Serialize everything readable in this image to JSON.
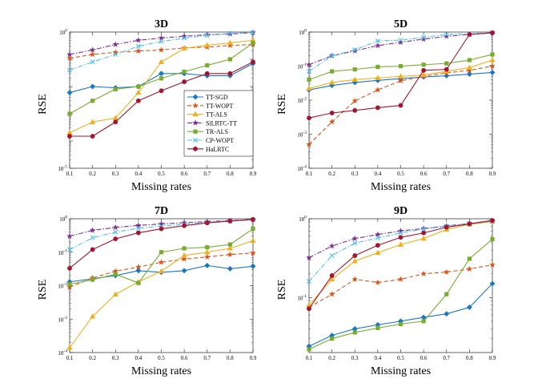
{
  "chart_data": [
    {
      "type": "line",
      "title": "3D",
      "xlabel": "Missing rates",
      "ylabel": "RSE",
      "yscale": "log",
      "ylim": [
        1e-05,
        1
      ],
      "yticks": [
        {
          "v": 1e-05,
          "base": "10",
          "exp": "-5"
        },
        {
          "v": 1,
          "base": "10",
          "exp": "0"
        }
      ],
      "x": [
        0.1,
        0.2,
        0.3,
        0.4,
        0.5,
        0.6,
        0.7,
        0.8,
        0.9
      ],
      "xtick_labels": [
        "0.1",
        "0.2",
        "0.3",
        "0.4",
        "0.5",
        "0.6",
        "0.7",
        "0.8",
        "0.9"
      ],
      "legend_position": "lower-right",
      "series": [
        {
          "name": "TT-SGD",
          "color": "#1a78c2",
          "marker": "diamond",
          "dash": "solid",
          "values": [
            0.006,
            0.01,
            0.009,
            0.01,
            0.03,
            0.03,
            0.025,
            0.025,
            0.07
          ]
        },
        {
          "name": "TT-WOPT",
          "color": "#d9541a",
          "marker": "star",
          "dash": "dashed",
          "values": [
            0.11,
            0.15,
            0.18,
            0.2,
            0.22,
            0.26,
            0.28,
            0.32,
            0.35
          ]
        },
        {
          "name": "TT-ALS",
          "color": "#edb120",
          "marker": "triangle",
          "dash": "solid",
          "values": [
            0.0002,
            0.0005,
            0.0007,
            0.006,
            0.08,
            0.25,
            0.33,
            0.4,
            0.5
          ]
        },
        {
          "name": "SiLRTC-TT",
          "color": "#7e2f8e",
          "marker": "star",
          "dash": "dashdot",
          "values": [
            0.15,
            0.22,
            0.35,
            0.5,
            0.6,
            0.7,
            0.8,
            0.85,
            0.95
          ]
        },
        {
          "name": "TR-ALS",
          "color": "#77ac30",
          "marker": "square",
          "dash": "solid",
          "values": [
            0.001,
            0.003,
            0.008,
            0.01,
            0.02,
            0.035,
            0.06,
            0.1,
            0.4
          ]
        },
        {
          "name": "CP-WOPT",
          "color": "#4dbeee",
          "marker": "x",
          "dash": "dashdot",
          "values": [
            0.04,
            0.08,
            0.15,
            0.3,
            0.45,
            0.6,
            0.75,
            0.9,
            0.95
          ]
        },
        {
          "name": "HaLRTC",
          "color": "#a2142f",
          "marker": "circle",
          "dash": "solid",
          "values": [
            0.00015,
            0.00015,
            0.0005,
            0.003,
            0.007,
            0.015,
            0.03,
            0.03,
            0.08
          ]
        }
      ]
    },
    {
      "type": "line",
      "title": "5D",
      "xlabel": "Missing rates",
      "ylabel": "RSE",
      "yscale": "log",
      "ylim": [
        0.0001,
        1
      ],
      "yticks": [
        {
          "v": 0.0001,
          "base": "10",
          "exp": "-4"
        },
        {
          "v": 0.001,
          "base": "10",
          "exp": "-3"
        },
        {
          "v": 0.01,
          "base": "10",
          "exp": "-2"
        },
        {
          "v": 0.1,
          "base": "10",
          "exp": "-1"
        },
        {
          "v": 1,
          "base": "10",
          "exp": "0"
        }
      ],
      "x": [
        0.1,
        0.2,
        0.3,
        0.4,
        0.5,
        0.6,
        0.7,
        0.8,
        0.9
      ],
      "xtick_labels": [
        "0.1",
        "0.2",
        "0.3",
        "0.4",
        "0.5",
        "0.6",
        "0.7",
        "0.8",
        "0.9"
      ],
      "series": [
        {
          "name": "TT-SGD",
          "color": "#1a78c2",
          "marker": "diamond",
          "dash": "solid",
          "values": [
            0.02,
            0.027,
            0.033,
            0.038,
            0.043,
            0.048,
            0.052,
            0.058,
            0.065
          ]
        },
        {
          "name": "TT-WOPT",
          "color": "#d9541a",
          "marker": "star",
          "dash": "dashed",
          "values": [
            0.0005,
            0.0023,
            0.0095,
            0.02,
            0.037,
            0.05,
            0.063,
            0.075,
            0.1
          ]
        },
        {
          "name": "TT-ALS",
          "color": "#edb120",
          "marker": "triangle",
          "dash": "solid",
          "values": [
            0.022,
            0.033,
            0.04,
            0.045,
            0.05,
            0.055,
            0.07,
            0.09,
            0.15
          ]
        },
        {
          "name": "SiLRTC-TT",
          "color": "#7e2f8e",
          "marker": "star",
          "dash": "dashdot",
          "values": [
            0.11,
            0.2,
            0.28,
            0.4,
            0.5,
            0.62,
            0.75,
            0.85,
            0.95
          ]
        },
        {
          "name": "TR-ALS",
          "color": "#77ac30",
          "marker": "square",
          "dash": "solid",
          "values": [
            0.04,
            0.07,
            0.08,
            0.095,
            0.1,
            0.11,
            0.12,
            0.15,
            0.22
          ]
        },
        {
          "name": "CP-WOPT",
          "color": "#4dbeee",
          "marker": "x",
          "dash": "dashdot",
          "values": [
            0.07,
            0.2,
            0.3,
            0.55,
            0.58,
            0.7,
            0.85,
            0.9,
            0.95
          ]
        },
        {
          "name": "HaLRTC",
          "color": "#a2142f",
          "marker": "circle",
          "dash": "solid",
          "values": [
            0.003,
            0.0042,
            0.005,
            0.006,
            0.007,
            0.075,
            0.08,
            0.85,
            0.95
          ]
        }
      ]
    },
    {
      "type": "line",
      "title": "7D",
      "xlabel": "Missing rates",
      "ylabel": "RSE",
      "yscale": "log",
      "ylim": [
        0.0001,
        1
      ],
      "yticks": [
        {
          "v": 0.0001,
          "base": "10",
          "exp": "-4"
        },
        {
          "v": 0.001,
          "base": "10",
          "exp": "-3"
        },
        {
          "v": 0.01,
          "base": "10",
          "exp": "-2"
        },
        {
          "v": 0.1,
          "base": "10",
          "exp": "-1"
        },
        {
          "v": 1,
          "base": "10",
          "exp": "0"
        }
      ],
      "x": [
        0.1,
        0.2,
        0.3,
        0.4,
        0.5,
        0.6,
        0.7,
        0.8,
        0.9
      ],
      "xtick_labels": [
        "0.1",
        "0.2",
        "0.3",
        "0.4",
        "0.5",
        "0.6",
        "0.7",
        "0.8",
        "0.9"
      ],
      "series": [
        {
          "name": "TT-SGD",
          "color": "#1a78c2",
          "marker": "diamond",
          "dash": "solid",
          "values": [
            0.013,
            0.016,
            0.02,
            0.028,
            0.025,
            0.028,
            0.04,
            0.032,
            0.038
          ]
        },
        {
          "name": "TT-WOPT",
          "color": "#d9541a",
          "marker": "star",
          "dash": "dashed",
          "values": [
            0.009,
            0.017,
            0.027,
            0.036,
            0.05,
            0.062,
            0.072,
            0.085,
            0.095
          ]
        },
        {
          "name": "TT-ALS",
          "color": "#edb120",
          "marker": "triangle",
          "dash": "solid",
          "values": [
            0.00014,
            0.0012,
            0.0055,
            0.013,
            0.027,
            0.08,
            0.1,
            0.13,
            0.22
          ]
        },
        {
          "name": "SiLRTC-TT",
          "color": "#7e2f8e",
          "marker": "star",
          "dash": "dashdot",
          "values": [
            0.3,
            0.45,
            0.55,
            0.63,
            0.7,
            0.76,
            0.82,
            0.88,
            0.95
          ]
        },
        {
          "name": "TR-ALS",
          "color": "#77ac30",
          "marker": "square",
          "dash": "solid",
          "values": [
            0.011,
            0.015,
            0.022,
            0.012,
            0.1,
            0.13,
            0.14,
            0.17,
            0.5
          ]
        },
        {
          "name": "CP-WOPT",
          "color": "#4dbeee",
          "marker": "x",
          "dash": "dashdot",
          "values": [
            0.12,
            0.27,
            0.4,
            0.52,
            0.6,
            0.68,
            0.78,
            0.85,
            0.93
          ]
        },
        {
          "name": "HaLRTC",
          "color": "#a2142f",
          "marker": "circle",
          "dash": "solid",
          "values": [
            0.033,
            0.12,
            0.25,
            0.38,
            0.5,
            0.62,
            0.75,
            0.85,
            0.95
          ]
        }
      ]
    },
    {
      "type": "line",
      "title": "9D",
      "xlabel": "Missing rates",
      "ylabel": "RSE",
      "yscale": "log",
      "ylim": [
        0.02,
        1
      ],
      "yticks": [
        {
          "v": 0.1,
          "base": "10",
          "exp": "-1"
        },
        {
          "v": 1,
          "base": "10",
          "exp": "0"
        }
      ],
      "x": [
        0.1,
        0.2,
        0.3,
        0.4,
        0.5,
        0.6,
        0.7,
        0.8,
        0.9
      ],
      "xtick_labels": [
        "0.1",
        "0.2",
        "0.3",
        "0.4",
        "0.5",
        "0.6",
        "0.7",
        "0.8",
        "0.9"
      ],
      "series": [
        {
          "name": "TT-SGD",
          "color": "#1a78c2",
          "marker": "diamond",
          "dash": "solid",
          "values": [
            0.024,
            0.033,
            0.04,
            0.045,
            0.05,
            0.056,
            0.062,
            0.075,
            0.15
          ]
        },
        {
          "name": "TT-WOPT",
          "color": "#d9541a",
          "marker": "star",
          "dash": "dashed",
          "values": [
            0.075,
            0.11,
            0.17,
            0.155,
            0.17,
            0.2,
            0.21,
            0.23,
            0.26
          ]
        },
        {
          "name": "TT-ALS",
          "color": "#edb120",
          "marker": "triangle",
          "dash": "solid",
          "values": [
            0.08,
            0.17,
            0.29,
            0.37,
            0.47,
            0.56,
            0.73,
            0.85,
            0.92
          ]
        },
        {
          "name": "SiLRTC-TT",
          "color": "#7e2f8e",
          "marker": "star",
          "dash": "dashdot",
          "values": [
            0.32,
            0.45,
            0.56,
            0.63,
            0.7,
            0.75,
            0.81,
            0.87,
            0.95
          ]
        },
        {
          "name": "TR-ALS",
          "color": "#77ac30",
          "marker": "square",
          "dash": "solid",
          "values": [
            0.022,
            0.03,
            0.036,
            0.041,
            0.046,
            0.05,
            0.11,
            0.31,
            0.55
          ]
        },
        {
          "name": "CP-WOPT",
          "color": "#4dbeee",
          "marker": "x",
          "dash": "dashdot",
          "values": [
            0.16,
            0.34,
            0.49,
            0.57,
            0.66,
            0.74,
            0.8,
            0.87,
            0.93
          ]
        },
        {
          "name": "HaLRTC",
          "color": "#a2142f",
          "marker": "circle",
          "dash": "solid",
          "values": [
            0.072,
            0.19,
            0.34,
            0.46,
            0.58,
            0.66,
            0.78,
            0.86,
            0.95
          ]
        }
      ]
    }
  ]
}
